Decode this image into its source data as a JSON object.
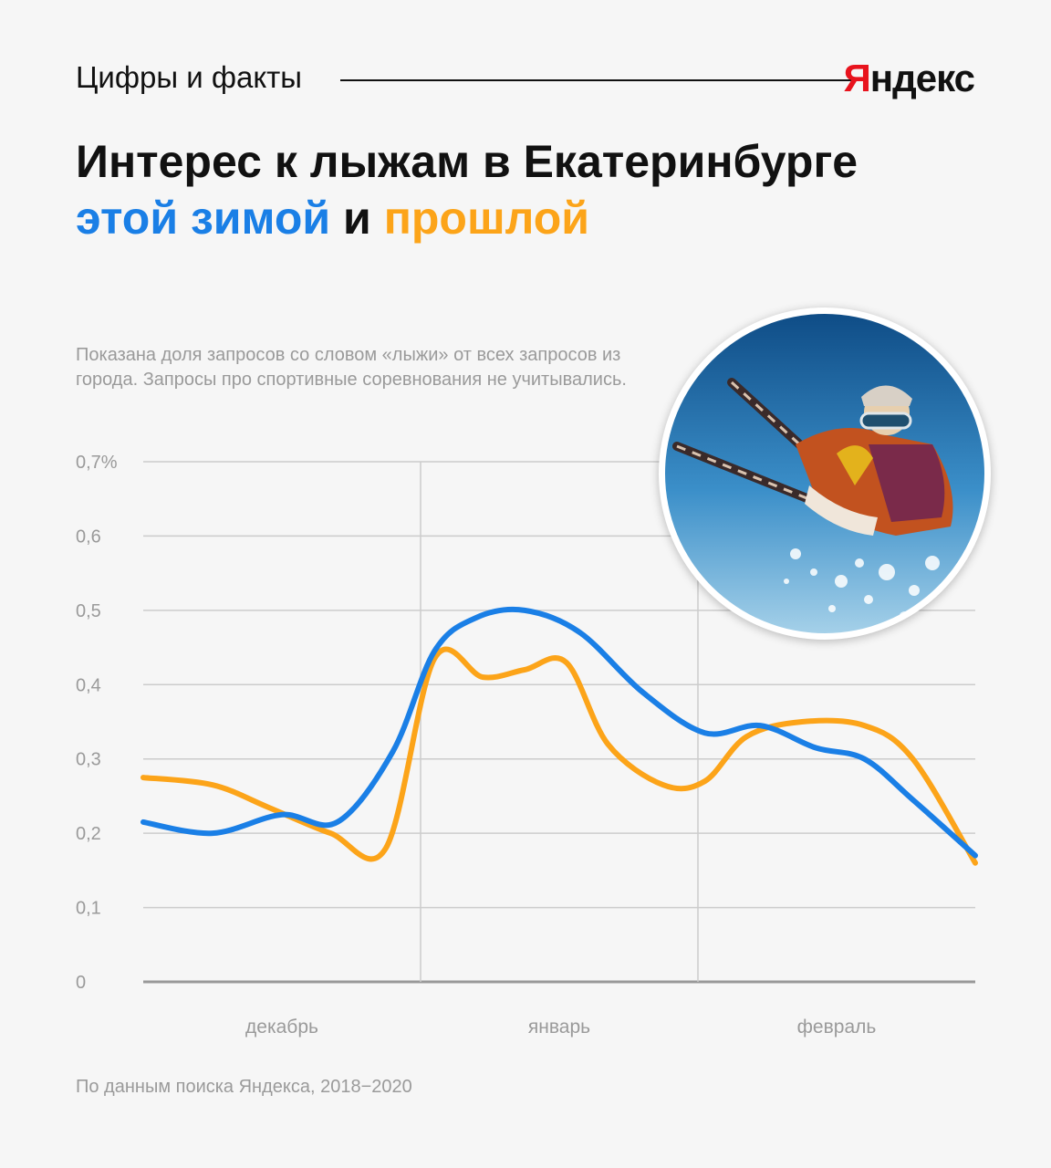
{
  "header": {
    "section_title": "Цифры и факты",
    "brand_first": "Я",
    "brand_rest": "ндекс"
  },
  "title": {
    "line1": "Интерес к лыжам в Екатеринбурге",
    "this_winter": "этой зимой",
    "and": " и ",
    "last_winter": "прошлой"
  },
  "note": "Показана доля запросов со словом «лыжи» от всех запросов из города. Запросы про спортивные соревнования не учитывались.",
  "source": "По данным поиска Яндекса, 2018−2020",
  "colors": {
    "this_winter": "#1a7fe6",
    "last_winter": "#fca419",
    "grid": "#cccccc",
    "axis": "#999999"
  },
  "photo": {
    "icon": "skier-photo"
  },
  "chart_data": {
    "type": "line",
    "y_tick_labels": [
      "0",
      "0,1",
      "0,2",
      "0,3",
      "0,4",
      "0,5",
      "0,6",
      "0,7%"
    ],
    "ylim": [
      0,
      0.7
    ],
    "x_labels": [
      "декабрь",
      "январь",
      "февраль"
    ],
    "xlim": [
      0,
      12
    ],
    "grid": true,
    "series": [
      {
        "key": "this_winter",
        "color": "#1a7fe6",
        "x": [
          0,
          1,
          2,
          2.8,
          3.6,
          4.2,
          4.8,
          5.5,
          6.3,
          7.2,
          8.1,
          8.9,
          9.7,
          10.4,
          11.1,
          12
        ],
        "values": [
          0.215,
          0.2,
          0.225,
          0.215,
          0.31,
          0.445,
          0.49,
          0.5,
          0.47,
          0.39,
          0.335,
          0.345,
          0.315,
          0.3,
          0.245,
          0.17
        ]
      },
      {
        "key": "last_winter",
        "color": "#fca419",
        "x": [
          0,
          1,
          1.8,
          2.7,
          3.5,
          4.2,
          4.9,
          5.5,
          6.1,
          6.7,
          7.5,
          8.1,
          8.7,
          9.5,
          10.4,
          11.1,
          12
        ],
        "values": [
          0.275,
          0.265,
          0.235,
          0.2,
          0.18,
          0.435,
          0.41,
          0.42,
          0.43,
          0.32,
          0.265,
          0.27,
          0.33,
          0.35,
          0.345,
          0.3,
          0.16
        ]
      }
    ]
  }
}
